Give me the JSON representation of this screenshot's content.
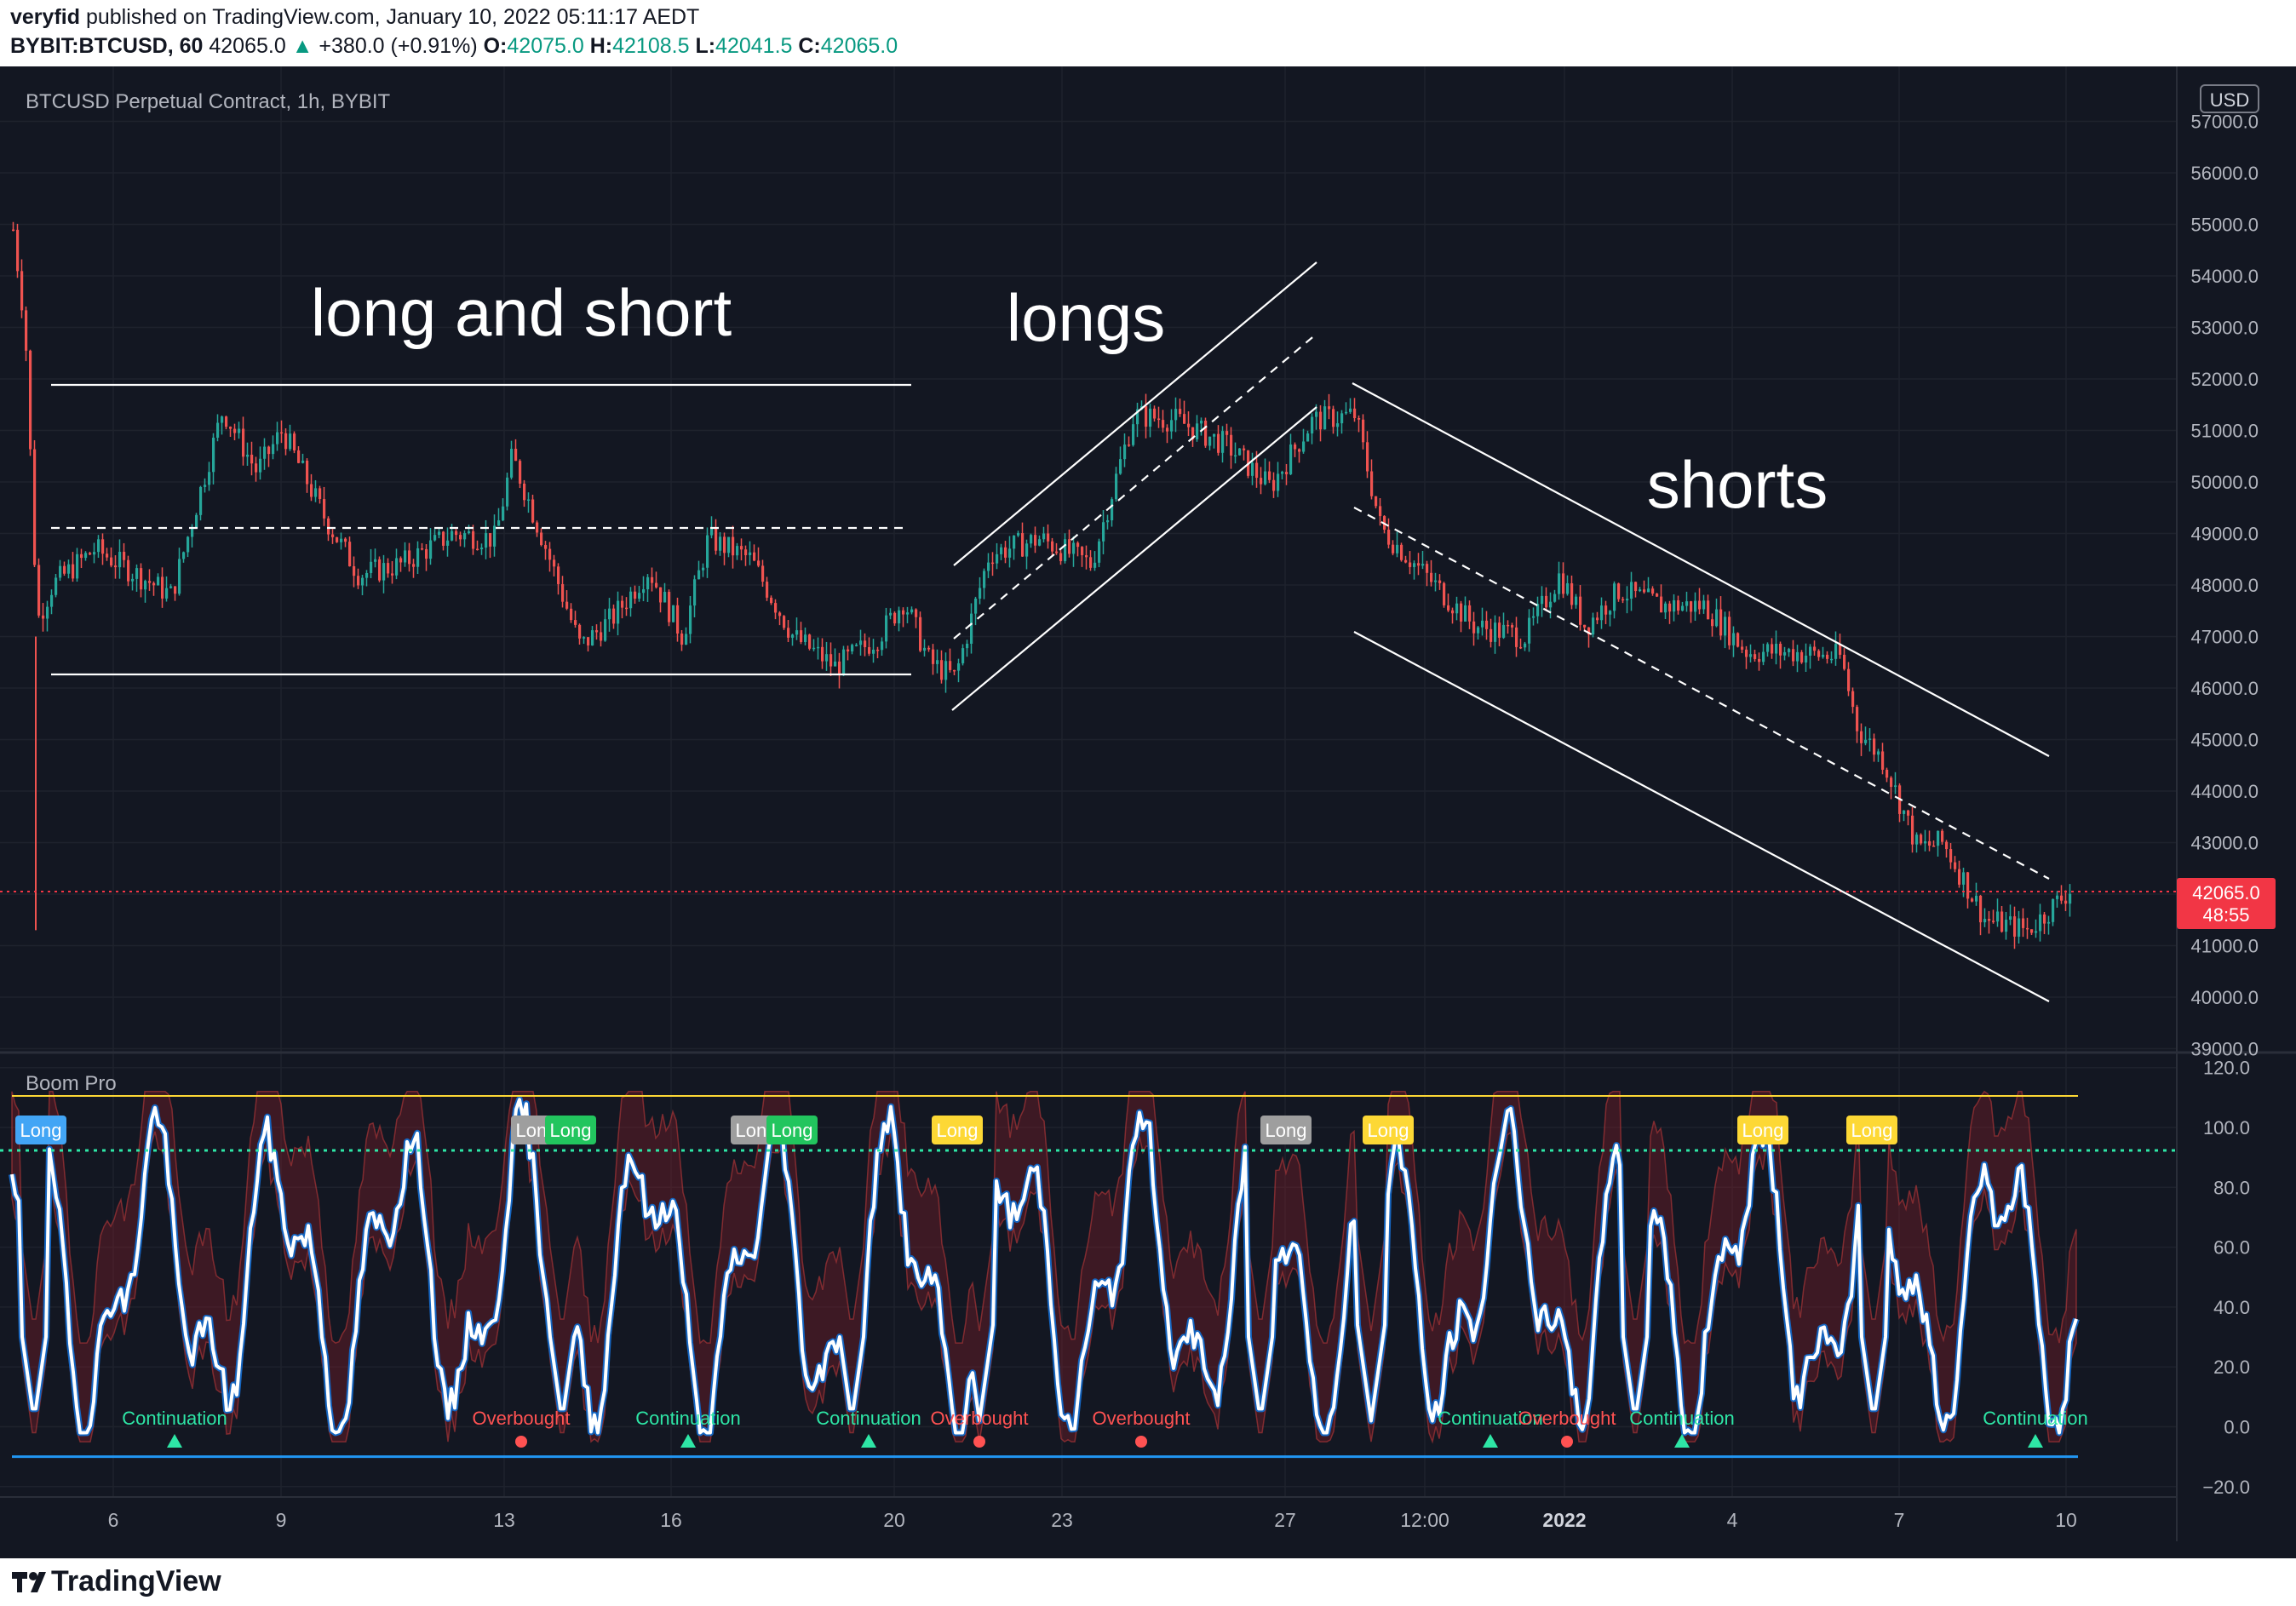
{
  "header": {
    "author": "veryfid",
    "published_text": "published on TradingView.com, January 10, 2022 05:11:17 AEDT",
    "symbol_line": "BYBIT:BTCUSD, 60",
    "last": "42065.0",
    "change": "+380.0 (+0.91%)",
    "o_label": "O:",
    "o": "42075.0",
    "h_label": "H:",
    "h": "42108.5",
    "l_label": "L:",
    "l": "42041.5",
    "c_label": "C:",
    "c": "42065.0"
  },
  "main_pane": {
    "title": "BTCUSD Perpetual Contract, 1h, BYBIT",
    "currency": "USD",
    "price_ticks": [
      "57000.0",
      "56000.0",
      "55000.0",
      "54000.0",
      "53000.0",
      "52000.0",
      "51000.0",
      "50000.0",
      "49000.0",
      "48000.0",
      "47000.0",
      "46000.0",
      "45000.0",
      "44000.0",
      "43000.0",
      "42000.0",
      "41000.0",
      "40000.0",
      "39000.0"
    ],
    "last_price": "42065.0",
    "countdown": "48:55",
    "annotations": [
      "long and short",
      "longs",
      "shorts"
    ]
  },
  "indicator_pane": {
    "title": "Boom Pro",
    "ticks": [
      "120.0",
      "100.0",
      "80.0",
      "60.0",
      "40.0",
      "20.0",
      "0.0",
      "−20.0"
    ],
    "signal_labels": [
      {
        "text": "Long",
        "color": "#42a5f5"
      },
      {
        "text": "Long",
        "color": "#9e9e9e"
      },
      {
        "text": "Long",
        "color": "#22c55e"
      },
      {
        "text": "Long",
        "color": "#9e9e9e"
      },
      {
        "text": "Long",
        "color": "#22c55e"
      },
      {
        "text": "Long",
        "color": "#fdd835"
      },
      {
        "text": "Long",
        "color": "#9e9e9e"
      },
      {
        "text": "Long",
        "color": "#fdd835"
      },
      {
        "text": "Long",
        "color": "#fdd835"
      },
      {
        "text": "Long",
        "color": "#fdd835"
      }
    ],
    "event_labels": [
      {
        "text": "Continuation",
        "kind": "continuation"
      },
      {
        "text": "Overbought",
        "kind": "overbought"
      },
      {
        "text": "Continuation",
        "kind": "continuation"
      },
      {
        "text": "Continuation",
        "kind": "continuation"
      },
      {
        "text": "Overbought",
        "kind": "overbought"
      },
      {
        "text": "Overbought",
        "kind": "overbought"
      },
      {
        "text": "Continuation",
        "kind": "continuation"
      },
      {
        "text": "Overbought",
        "kind": "overbought"
      },
      {
        "text": "Continuation",
        "kind": "continuation"
      },
      {
        "text": "Continuation",
        "kind": "continuation"
      }
    ]
  },
  "time_axis": [
    "6",
    "9",
    "13",
    "16",
    "20",
    "23",
    "27",
    "12:00",
    "2022",
    "4",
    "7",
    "10"
  ],
  "footer": {
    "brand": "TradingView"
  },
  "colors": {
    "background": "#131722",
    "up": "#26a69a",
    "down": "#ef5350",
    "line": "#ffffff",
    "last_price_tag": "#f23645",
    "continuation": "#2ee6a6",
    "overbought": "#ff5252",
    "signal_line": "#2196f3",
    "envelope": "#fdd835"
  }
}
